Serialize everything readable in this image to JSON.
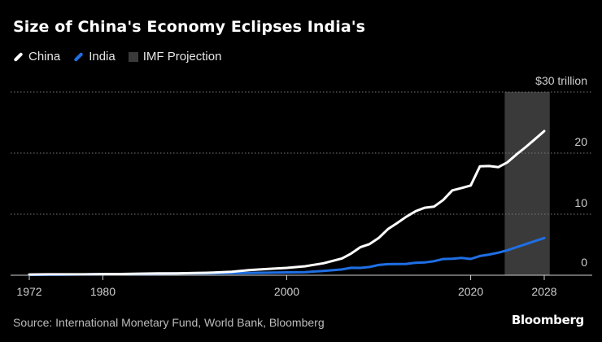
{
  "title": "Size of China's Economy Eclipses India's",
  "legend": {
    "china": "China",
    "india": "India",
    "projection": "IMF Projection"
  },
  "source": "Source: International Monetary Fund, World Bank, Bloomberg",
  "brand": "Bloomberg",
  "colors": {
    "background": "#000000",
    "china": "#ffffff",
    "india": "#1f6fe5",
    "projection": "#3a3a3a",
    "grid": "#777777",
    "tick_text": "#cfcfcf"
  },
  "chart_data": {
    "type": "line",
    "title": "Size of China's Economy Eclipses India's",
    "xlabel": "",
    "ylabel": "",
    "xlim": [
      1971,
      2030
    ],
    "ylim": [
      0,
      30
    ],
    "x_ticks": [
      1972,
      1980,
      2000,
      2020,
      2028
    ],
    "y_ticks": [
      0,
      10,
      20,
      30
    ],
    "y_tick_labels": [
      "0",
      "10",
      "20",
      "$30 trillion"
    ],
    "grid": "horizontal dotted",
    "legend_position": "top-left",
    "projection_band": {
      "label": "IMF Projection",
      "from": 2023.7,
      "to": 2028.6
    },
    "series": [
      {
        "name": "China",
        "x": [
          1972,
          1974,
          1976,
          1978,
          1980,
          1982,
          1984,
          1986,
          1988,
          1990,
          1992,
          1994,
          1996,
          1998,
          2000,
          2002,
          2004,
          2006,
          2007,
          2008,
          2009,
          2010,
          2011,
          2012,
          2013,
          2014,
          2015,
          2016,
          2017,
          2018,
          2019,
          2020,
          2021,
          2022,
          2023,
          2024,
          2025,
          2026,
          2027,
          2028
        ],
        "values": [
          0.12,
          0.14,
          0.15,
          0.15,
          0.19,
          0.2,
          0.26,
          0.3,
          0.31,
          0.36,
          0.43,
          0.56,
          0.86,
          1.03,
          1.2,
          1.47,
          1.96,
          2.75,
          3.55,
          4.59,
          5.1,
          6.09,
          7.55,
          8.53,
          9.57,
          10.48,
          11.06,
          11.23,
          12.31,
          13.89,
          14.28,
          14.69,
          17.82,
          17.88,
          17.7,
          18.5,
          19.8,
          21.0,
          22.3,
          23.6
        ]
      },
      {
        "name": "India",
        "x": [
          1972,
          1976,
          1980,
          1984,
          1988,
          1990,
          1994,
          1998,
          2000,
          2002,
          2004,
          2006,
          2007,
          2008,
          2009,
          2010,
          2011,
          2012,
          2013,
          2014,
          2015,
          2016,
          2017,
          2018,
          2019,
          2020,
          2021,
          2022,
          2023,
          2024,
          2025,
          2026,
          2027,
          2028
        ],
        "values": [
          0.07,
          0.1,
          0.19,
          0.22,
          0.3,
          0.32,
          0.33,
          0.42,
          0.47,
          0.51,
          0.71,
          0.94,
          1.22,
          1.2,
          1.34,
          1.68,
          1.82,
          1.83,
          1.86,
          2.04,
          2.1,
          2.29,
          2.65,
          2.7,
          2.84,
          2.67,
          3.15,
          3.39,
          3.7,
          4.1,
          4.6,
          5.1,
          5.6,
          6.1
        ]
      }
    ]
  }
}
